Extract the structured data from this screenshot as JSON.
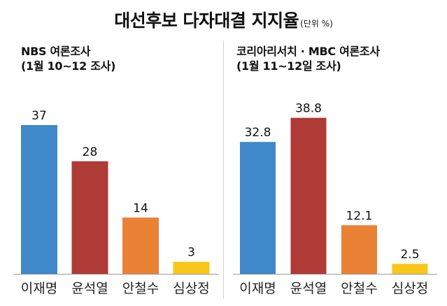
{
  "title": "대선후보 다자대결 지지율",
  "unit": "(단위 %)",
  "chart_data": [
    {
      "type": "bar",
      "subtitle": "NBS 여론조사",
      "period": "(1월 10~12 조사)",
      "categories": [
        "이재명",
        "윤석열",
        "안철수",
        "심상정"
      ],
      "values": [
        37,
        28,
        14,
        3
      ],
      "value_labels": [
        "37",
        "28",
        "14",
        "3"
      ],
      "colors": [
        "#3f88c9",
        "#b03a36",
        "#ea8135",
        "#fac61a"
      ],
      "ylim": [
        0,
        40
      ]
    },
    {
      "type": "bar",
      "subtitle": "코리아리서치 · MBC 여론조사",
      "period": "(1월 11~12일 조사)",
      "categories": [
        "이재명",
        "윤석열",
        "안철수",
        "심상정"
      ],
      "values": [
        32.8,
        38.8,
        12.1,
        2.5
      ],
      "value_labels": [
        "32.8",
        "38.8",
        "12.1",
        "2.5"
      ],
      "colors": [
        "#3f88c9",
        "#b03a36",
        "#ea8135",
        "#fac61a"
      ],
      "ylim": [
        0,
        40
      ]
    }
  ]
}
